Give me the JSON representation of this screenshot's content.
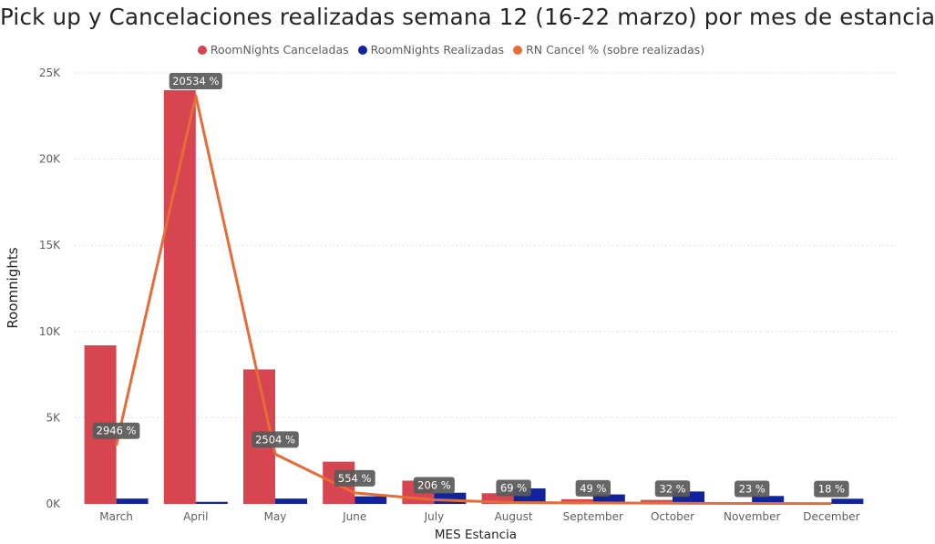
{
  "chart_data": {
    "type": "bar",
    "title": "Pick up y Cancelaciones realizadas semana 12 (16-22 marzo) por mes de estancia",
    "xlabel": "MES Estancia",
    "ylabel": "Roomnights",
    "ylim": [
      0,
      25000
    ],
    "yticks": [
      0,
      5000,
      10000,
      15000,
      20000,
      25000
    ],
    "ytick_labels": [
      "0K",
      "5K",
      "10K",
      "15K",
      "20K",
      "25K"
    ],
    "grid": true,
    "legend_position": "top-center",
    "categories": [
      "March",
      "April",
      "May",
      "June",
      "July",
      "August",
      "September",
      "October",
      "November",
      "December"
    ],
    "series": [
      {
        "name": "RoomNights Canceladas",
        "type": "bar",
        "color": "#d64550",
        "values": [
          9200,
          24000,
          7800,
          2450,
          1350,
          620,
          270,
          230,
          100,
          60
        ]
      },
      {
        "name": "RoomNights Realizadas",
        "type": "bar",
        "color": "#12239e",
        "values": [
          310,
          120,
          310,
          440,
          650,
          900,
          550,
          720,
          460,
          300
        ]
      },
      {
        "name": "RN Cancel % (sobre realizadas)",
        "type": "line",
        "color": "#e66c37",
        "values": [
          2946,
          20534,
          2504,
          554,
          206,
          69,
          49,
          32,
          23,
          18
        ],
        "data_labels": [
          "2946 %",
          "20534 %",
          "2504 %",
          "554 %",
          "206 %",
          "69 %",
          "49 %",
          "32 %",
          "23 %",
          "18 %"
        ]
      }
    ]
  }
}
